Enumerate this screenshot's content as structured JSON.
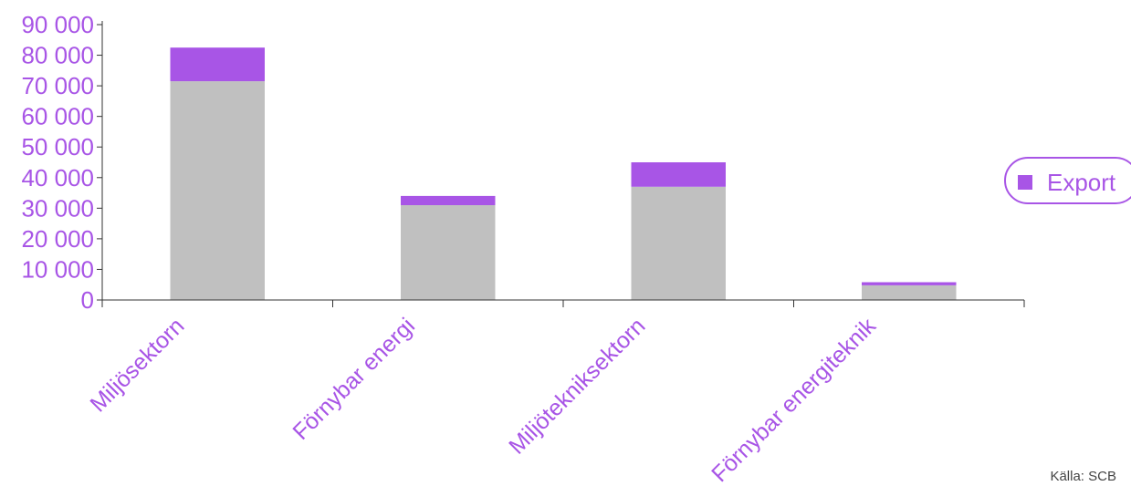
{
  "chart_data": {
    "type": "bar",
    "stacked": true,
    "categories": [
      "Miljösektorn",
      "Förnybar energi",
      "Miljötekniksektorn",
      "Förnybar energiteknik"
    ],
    "series": [
      {
        "values": [
          71500,
          31000,
          37000,
          4800
        ],
        "color": "#c0c0c0"
      },
      {
        "name": "Export",
        "values": [
          11000,
          3000,
          8000,
          1000
        ],
        "color": "#a855e6"
      }
    ],
    "ylim": [
      0,
      90000
    ],
    "yticks": [
      0,
      10000,
      20000,
      30000,
      40000,
      50000,
      60000,
      70000,
      80000,
      90000
    ],
    "ytick_labels": [
      "0",
      "10 000",
      "20 000",
      "30 000",
      "40 000",
      "50 000",
      "60 000",
      "70 000",
      "80 000",
      "90 000"
    ],
    "legend": {
      "position": "right",
      "entries": [
        "Export"
      ]
    },
    "grid": false,
    "label_color": "#a855e6",
    "axis_color": "#333333",
    "source": "Källa: SCB"
  }
}
